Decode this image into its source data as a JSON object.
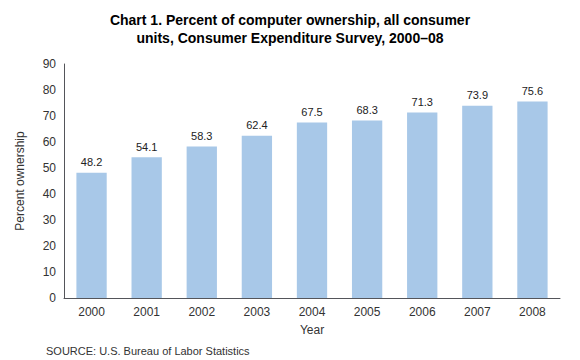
{
  "chart_data": {
    "type": "bar",
    "title": "Chart 1. Percent of computer ownership, all consumer\nunits, Consumer Expenditure Survey, 2000–08",
    "categories": [
      "2000",
      "2001",
      "2002",
      "2003",
      "2004",
      "2005",
      "2006",
      "2007",
      "2008"
    ],
    "values": [
      48.2,
      54.1,
      58.3,
      62.4,
      67.5,
      68.3,
      71.3,
      73.9,
      75.6
    ],
    "color": "#a8c8e8",
    "xlabel": "Year",
    "ylabel": "Percent ownership",
    "ylim": [
      0,
      90
    ],
    "yticks": [
      0,
      10,
      20,
      30,
      40,
      50,
      60,
      70,
      80,
      90
    ],
    "grid": false,
    "data_labels": true,
    "annotations": [
      "SOURCE: U.S. Bureau of Labor Statistics"
    ]
  }
}
